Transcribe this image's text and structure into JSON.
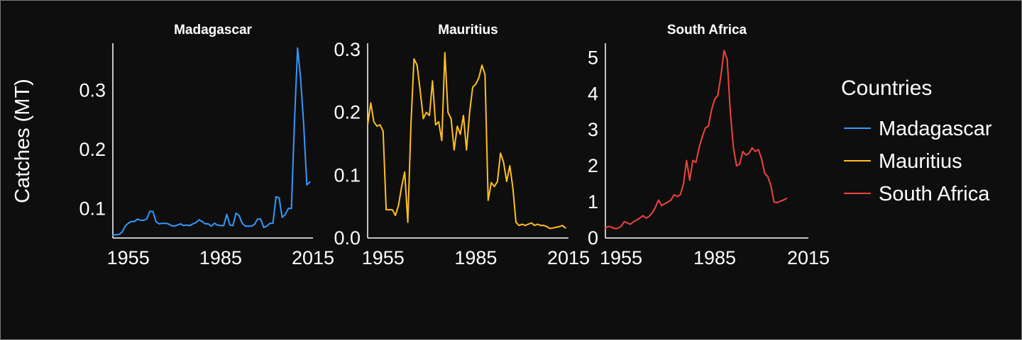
{
  "chart_data": {
    "type": "line",
    "ylabel": "Catches (MT)",
    "legend": {
      "title": "Countries",
      "placement": "right",
      "entries": [
        {
          "label": "Madagascar",
          "color": "#3399ff"
        },
        {
          "label": "Mauritius",
          "color": "#ffbf1f"
        },
        {
          "label": "South Africa",
          "color": "#f0443d"
        }
      ]
    },
    "grid": false,
    "panels": [
      {
        "title": "Madagascar",
        "color": "#3399ff",
        "xlim": [
          1950,
          2015
        ],
        "ylim": [
          0.05,
          0.38
        ],
        "xticks": [
          1955,
          1985,
          2015
        ],
        "yticks": [
          0.1,
          0.2,
          0.3
        ],
        "ytick_labels": [
          "0.1",
          "0.2",
          "0.3"
        ],
        "x": [
          1950,
          1952,
          1953,
          1954,
          1955,
          1956,
          1957,
          1958,
          1959,
          1960,
          1961,
          1962,
          1963,
          1964,
          1965,
          1966,
          1967,
          1968,
          1969,
          1970,
          1971,
          1972,
          1973,
          1974,
          1975,
          1976,
          1977,
          1978,
          1979,
          1980,
          1981,
          1982,
          1983,
          1984,
          1985,
          1986,
          1987,
          1988,
          1989,
          1990,
          1991,
          1992,
          1993,
          1994,
          1995,
          1996,
          1997,
          1998,
          1999,
          2000,
          2001,
          2002,
          2003,
          2004,
          2005,
          2006,
          2007,
          2008,
          2009,
          2010,
          2011,
          2012,
          2013,
          2014
        ],
        "y": [
          0.055,
          0.056,
          0.06,
          0.07,
          0.075,
          0.078,
          0.078,
          0.082,
          0.08,
          0.08,
          0.082,
          0.095,
          0.095,
          0.078,
          0.074,
          0.075,
          0.075,
          0.074,
          0.071,
          0.07,
          0.072,
          0.074,
          0.071,
          0.072,
          0.071,
          0.074,
          0.076,
          0.081,
          0.078,
          0.074,
          0.074,
          0.07,
          0.075,
          0.072,
          0.071,
          0.071,
          0.09,
          0.072,
          0.071,
          0.092,
          0.088,
          0.075,
          0.07,
          0.07,
          0.07,
          0.073,
          0.082,
          0.082,
          0.068,
          0.07,
          0.075,
          0.075,
          0.12,
          0.118,
          0.085,
          0.09,
          0.1,
          0.1,
          0.25,
          0.372,
          0.32,
          0.24,
          0.14,
          0.145
        ]
      },
      {
        "title": "Mauritius",
        "color": "#ffbf1f",
        "xlim": [
          1950,
          2015
        ],
        "ylim": [
          0,
          0.31
        ],
        "xticks": [
          1955,
          1985,
          2015
        ],
        "yticks": [
          0.0,
          0.1,
          0.2,
          0.3
        ],
        "ytick_labels": [
          "0.0",
          "0.1",
          "0.2",
          "0.3"
        ],
        "x": [
          1950,
          1951,
          1952,
          1953,
          1954,
          1955,
          1956,
          1957,
          1958,
          1959,
          1960,
          1961,
          1962,
          1963,
          1964,
          1965,
          1966,
          1967,
          1968,
          1969,
          1970,
          1971,
          1972,
          1973,
          1974,
          1975,
          1976,
          1977,
          1978,
          1979,
          1980,
          1981,
          1982,
          1983,
          1984,
          1985,
          1986,
          1987,
          1988,
          1989,
          1990,
          1991,
          1992,
          1993,
          1994,
          1995,
          1996,
          1997,
          1998,
          1999,
          2000,
          2001,
          2002,
          2003,
          2004,
          2005,
          2006,
          2007,
          2008,
          2009,
          2010,
          2011,
          2012,
          2013,
          2014
        ],
        "y": [
          0.18,
          0.215,
          0.185,
          0.178,
          0.18,
          0.17,
          0.045,
          0.045,
          0.045,
          0.036,
          0.052,
          0.082,
          0.105,
          0.025,
          0.18,
          0.285,
          0.275,
          0.235,
          0.19,
          0.2,
          0.195,
          0.25,
          0.18,
          0.185,
          0.155,
          0.295,
          0.2,
          0.19,
          0.14,
          0.178,
          0.165,
          0.195,
          0.14,
          0.2,
          0.24,
          0.245,
          0.255,
          0.275,
          0.26,
          0.06,
          0.088,
          0.082,
          0.09,
          0.135,
          0.12,
          0.09,
          0.115,
          0.08,
          0.025,
          0.02,
          0.022,
          0.02,
          0.022,
          0.024,
          0.02,
          0.022,
          0.02,
          0.02,
          0.018,
          0.015,
          0.016,
          0.017,
          0.018,
          0.02,
          0.016
        ]
      },
      {
        "title": "South Africa",
        "color": "#f0443d",
        "xlim": [
          1950,
          2015
        ],
        "ylim": [
          0,
          5.4
        ],
        "xticks": [
          1955,
          1985,
          2015
        ],
        "yticks": [
          0,
          1,
          2,
          3,
          4,
          5
        ],
        "ytick_labels": [
          "0",
          "1",
          "2",
          "3",
          "4",
          "5"
        ],
        "x": [
          1950,
          1951,
          1952,
          1953,
          1954,
          1955,
          1956,
          1957,
          1958,
          1959,
          1960,
          1961,
          1962,
          1963,
          1964,
          1965,
          1966,
          1967,
          1968,
          1969,
          1970,
          1971,
          1972,
          1973,
          1974,
          1975,
          1976,
          1977,
          1978,
          1979,
          1980,
          1981,
          1982,
          1983,
          1984,
          1985,
          1986,
          1987,
          1988,
          1989,
          1990,
          1991,
          1992,
          1993,
          1994,
          1995,
          1996,
          1997,
          1998,
          1999,
          2000,
          2001,
          2002,
          2003,
          2004,
          2005,
          2006,
          2007,
          2008,
          2009,
          2010,
          2011,
          2012,
          2013,
          2014
        ],
        "y": [
          0.28,
          0.32,
          0.3,
          0.26,
          0.27,
          0.32,
          0.45,
          0.42,
          0.38,
          0.45,
          0.5,
          0.55,
          0.62,
          0.55,
          0.6,
          0.7,
          0.85,
          1.05,
          0.9,
          0.95,
          1.0,
          1.05,
          1.2,
          1.15,
          1.2,
          1.5,
          2.15,
          1.6,
          2.15,
          2.1,
          2.5,
          2.8,
          3.05,
          3.1,
          3.55,
          3.85,
          3.95,
          4.5,
          5.2,
          4.95,
          3.5,
          2.5,
          2.0,
          2.05,
          2.4,
          2.3,
          2.35,
          2.5,
          2.4,
          2.45,
          2.2,
          1.8,
          1.7,
          1.45,
          1.0,
          0.98,
          1.02,
          1.05,
          1.1,
          null,
          null,
          null,
          null,
          null,
          null
        ]
      }
    ]
  }
}
